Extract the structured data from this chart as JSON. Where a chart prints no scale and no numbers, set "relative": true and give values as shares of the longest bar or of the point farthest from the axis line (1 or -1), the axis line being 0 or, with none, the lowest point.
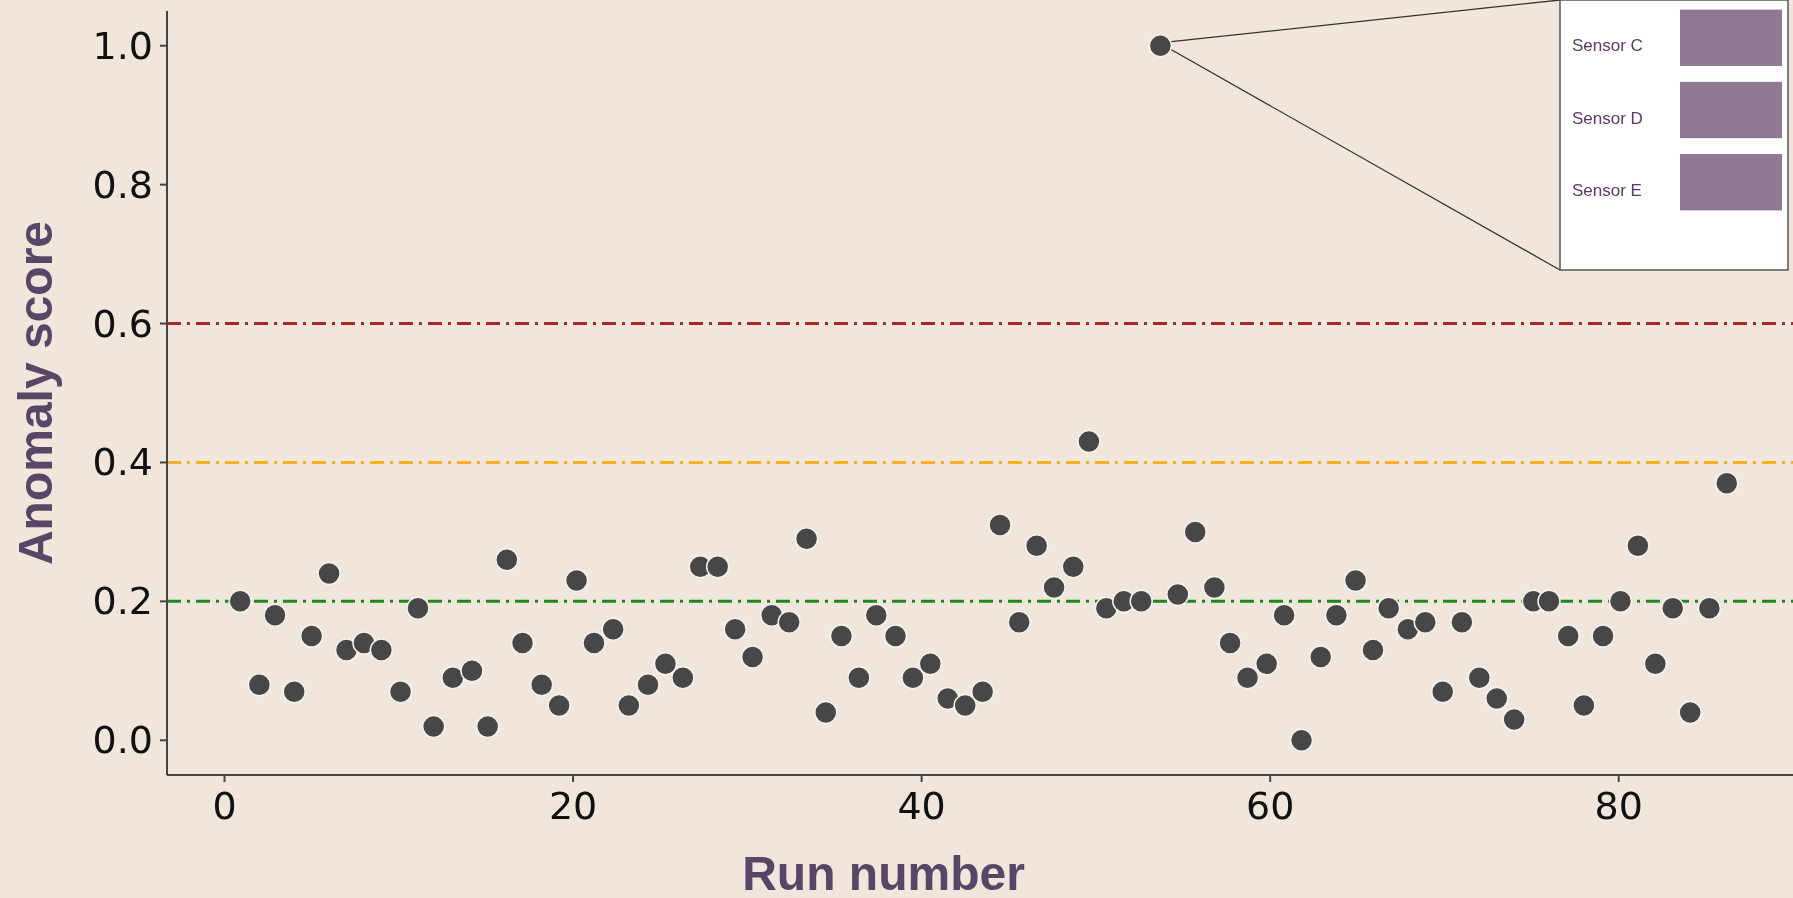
{
  "chart_data": [
    {
      "type": "scatter",
      "xlabel": "Run number",
      "ylabel": "Anomaly score",
      "color": "#474747",
      "marker": "circle",
      "grid": false,
      "x": [
        0.9,
        2.0,
        2.9,
        4.0,
        5.0,
        6.0,
        7.0,
        8.0,
        9.0,
        10.1,
        11.1,
        12.0,
        13.1,
        14.2,
        15.1,
        16.2,
        17.1,
        18.2,
        19.2,
        20.2,
        21.2,
        22.3,
        23.2,
        24.3,
        25.3,
        26.3,
        27.3,
        28.3,
        29.3,
        30.3,
        31.4,
        32.4,
        33.4,
        34.5,
        35.4,
        36.4,
        37.4,
        38.5,
        39.5,
        40.5,
        41.5,
        42.5,
        43.5,
        44.5,
        45.6,
        46.6,
        47.6,
        48.7,
        49.6,
        50.6,
        51.6,
        52.6,
        53.7,
        54.7,
        55.7,
        56.8,
        57.7,
        58.7,
        59.8,
        60.8,
        61.8,
        62.9,
        63.8,
        64.9,
        65.9,
        66.8,
        67.9,
        68.9,
        69.9,
        71.0,
        72.0,
        73.0,
        74.0,
        75.1,
        76.0,
        77.1,
        78.0,
        79.1,
        80.1,
        81.1,
        82.1,
        83.1,
        84.1,
        85.2,
        86.2
      ],
      "values": [
        0.2,
        0.08,
        0.18,
        0.07,
        0.15,
        0.24,
        0.13,
        0.14,
        0.13,
        0.07,
        0.19,
        0.02,
        0.09,
        0.1,
        0.02,
        0.26,
        0.14,
        0.08,
        0.05,
        0.23,
        0.14,
        0.16,
        0.05,
        0.08,
        0.11,
        0.09,
        0.25,
        0.25,
        0.16,
        0.12,
        0.18,
        0.17,
        0.29,
        0.04,
        0.15,
        0.09,
        0.18,
        0.15,
        0.09,
        0.11,
        0.06,
        0.05,
        0.07,
        0.31,
        0.17,
        0.28,
        0.22,
        0.25,
        0.43,
        0.19,
        0.2,
        0.2,
        1.0,
        0.21,
        0.3,
        0.22,
        0.14,
        0.09,
        0.11,
        0.18,
        0.0,
        0.12,
        0.18,
        0.23,
        0.13,
        0.19,
        0.16,
        0.17,
        0.07,
        0.17,
        0.09,
        0.06,
        0.03,
        0.2,
        0.2,
        0.15,
        0.05,
        0.15,
        0.2,
        0.28,
        0.11,
        0.19,
        0.04,
        0.19,
        0.37
      ],
      "xlim": [
        -3.3,
        90
      ],
      "ylim": [
        -0.05,
        1.05
      ],
      "xticks": [
        0,
        20,
        40,
        60,
        80
      ],
      "yticks": [
        {
          "value": 0,
          "label": "0.0"
        },
        {
          "value": 0.2,
          "label": "0.2"
        },
        {
          "value": 0.4,
          "label": "0.4"
        },
        {
          "value": 0.6,
          "label": "0.6"
        },
        {
          "value": 0.8,
          "label": "0.8"
        },
        {
          "value": 1,
          "label": "1.0"
        }
      ],
      "ref_lines": [
        {
          "axis": "y",
          "value": 0.6,
          "color": "#a82828",
          "line_style": "dashed"
        },
        {
          "axis": "y",
          "value": 0.4,
          "color": "#f5b021",
          "line_style": "dashed"
        },
        {
          "axis": "y",
          "value": 0.2,
          "color": "#1a8a1a",
          "line_style": "dashed"
        }
      ]
    },
    {
      "type": "bar",
      "orientation": "horizontal",
      "relative": true,
      "categories": [
        "Sensor C",
        "Sensor D",
        "Sensor E"
      ],
      "values": [
        1,
        1,
        1
      ],
      "color": "#8e7894"
    }
  ]
}
